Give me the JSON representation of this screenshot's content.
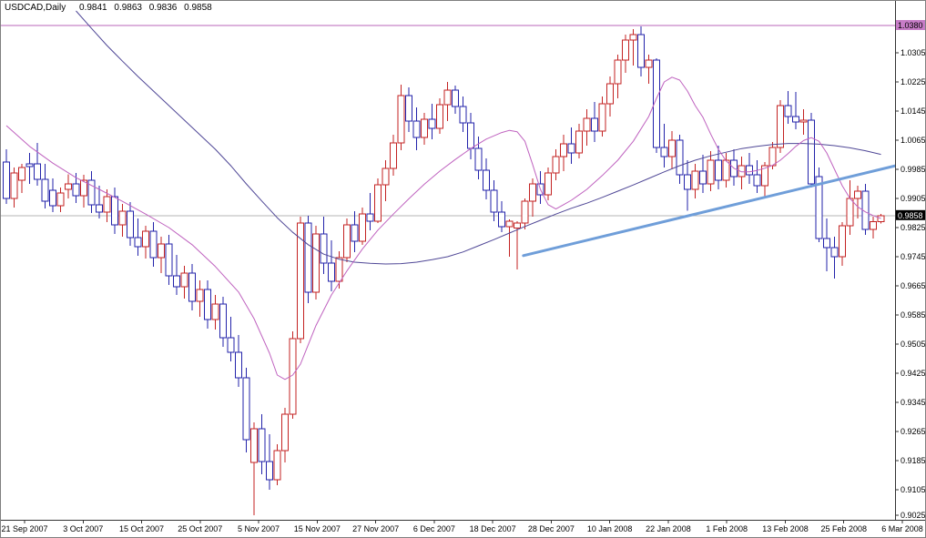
{
  "header": {
    "symbol_timeframe": "USDCAD,Daily",
    "open": "0.9841",
    "high": "0.9863",
    "low": "0.9836",
    "close": "0.9858"
  },
  "chart_data": {
    "type": "candlestick",
    "symbol": "USDCAD",
    "timeframe": "Daily",
    "title": "USDCAD,Daily",
    "x_axis": {
      "labels": [
        "21 Sep 2007",
        "3 Oct 2007",
        "15 Oct 2007",
        "25 Oct 2007",
        "5 Nov 2007",
        "15 Nov 2007",
        "27 Nov 2007",
        "6 Dec 2007",
        "18 Dec 2007",
        "28 Dec 2007",
        "10 Jan 2008",
        "22 Jan 2008",
        "1 Feb 2008",
        "13 Feb 2008",
        "25 Feb 2008",
        "6 Mar 2008"
      ]
    },
    "y_axis": {
      "tick_labels": [
        "1.0305",
        "1.0225",
        "1.0145",
        "1.0065",
        "0.9985",
        "0.9905",
        "0.9825",
        "0.9745",
        "0.9665",
        "0.9585",
        "0.9505",
        "0.9425",
        "0.9345",
        "0.9265",
        "0.9185",
        "0.9105",
        "0.9025"
      ],
      "range_top": 1.038,
      "range_bottom": 0.9025
    },
    "markers": {
      "horizontal_line_label": "1.0380",
      "current_price_label": "0.9858"
    },
    "candles": [
      [
        1.0005,
        1.004,
        0.989,
        0.9905
      ],
      [
        0.9905,
        0.999,
        0.988,
        0.9975
      ],
      [
        0.9955,
        1.0,
        0.992,
        0.999
      ],
      [
        1.0,
        1.003,
        0.9945,
        0.9992
      ],
      [
        1.0,
        1.0058,
        0.994,
        0.9958
      ],
      [
        0.9958,
        1.0,
        0.9878,
        0.9898
      ],
      [
        0.9928,
        0.996,
        0.9868,
        0.9885
      ],
      [
        0.9885,
        0.9935,
        0.9868,
        0.992
      ],
      [
        0.993,
        0.9971,
        0.9905,
        0.9945
      ],
      [
        0.9945,
        0.9975,
        0.9893,
        0.9913
      ],
      [
        0.9913,
        0.997,
        0.988,
        0.9955
      ],
      [
        0.9955,
        0.998,
        0.9865,
        0.9888
      ],
      [
        0.9888,
        0.994,
        0.985,
        0.9868
      ],
      [
        0.9868,
        0.993,
        0.984,
        0.991
      ],
      [
        0.991,
        0.9935,
        0.9808,
        0.9833
      ],
      [
        0.9833,
        0.989,
        0.98,
        0.987
      ],
      [
        0.987,
        0.9895,
        0.9775,
        0.9798
      ],
      [
        0.9798,
        0.985,
        0.9748,
        0.9773
      ],
      [
        0.9773,
        0.983,
        0.974,
        0.9815
      ],
      [
        0.9815,
        0.984,
        0.9718,
        0.9743
      ],
      [
        0.9743,
        0.98,
        0.97,
        0.978
      ],
      [
        0.978,
        0.9805,
        0.9668,
        0.9693
      ],
      [
        0.9693,
        0.975,
        0.964,
        0.9663
      ],
      [
        0.9663,
        0.972,
        0.963,
        0.97
      ],
      [
        0.97,
        0.9725,
        0.9598,
        0.9623
      ],
      [
        0.9623,
        0.968,
        0.958,
        0.9655
      ],
      [
        0.9655,
        0.968,
        0.9548,
        0.9573
      ],
      [
        0.9573,
        0.964,
        0.9545,
        0.9615
      ],
      [
        0.9615,
        0.9635,
        0.9498,
        0.9523
      ],
      [
        0.9523,
        0.958,
        0.9458,
        0.9483
      ],
      [
        0.9483,
        0.953,
        0.9388,
        0.9413
      ],
      [
        0.9413,
        0.944,
        0.9208,
        0.9243
      ],
      [
        0.918,
        0.929,
        0.9035,
        0.9272
      ],
      [
        0.9272,
        0.9312,
        0.9148,
        0.9183
      ],
      [
        0.9183,
        0.9258,
        0.9105,
        0.9133
      ],
      [
        0.9133,
        0.923,
        0.9118,
        0.9213
      ],
      [
        0.9213,
        0.933,
        0.918,
        0.9313
      ],
      [
        0.9313,
        0.954,
        0.93,
        0.952
      ],
      [
        0.952,
        0.9855,
        0.9508,
        0.9838
      ],
      [
        0.9838,
        0.9858,
        0.9618,
        0.9648
      ],
      [
        0.9648,
        0.983,
        0.9628,
        0.9808
      ],
      [
        0.9808,
        0.9855,
        0.9698,
        0.9728
      ],
      [
        0.9728,
        0.979,
        0.965,
        0.9678
      ],
      [
        0.9678,
        0.976,
        0.9658,
        0.9743
      ],
      [
        0.9743,
        0.985,
        0.973,
        0.9833
      ],
      [
        0.9833,
        0.987,
        0.9758,
        0.9788
      ],
      [
        0.9788,
        0.988,
        0.9778,
        0.9863
      ],
      [
        0.9863,
        0.992,
        0.9818,
        0.9843
      ],
      [
        0.9843,
        0.996,
        0.9838,
        0.9943
      ],
      [
        0.9943,
        1.001,
        0.9898,
        0.9988
      ],
      [
        0.9988,
        1.008,
        0.9968,
        1.0058
      ],
      [
        1.0058,
        1.0217,
        1.0038,
        1.0188
      ],
      [
        1.0188,
        1.021,
        1.0088,
        1.0118
      ],
      [
        1.0118,
        1.0155,
        1.0038,
        1.0073
      ],
      [
        1.0073,
        1.014,
        1.0053,
        1.0123
      ],
      [
        1.0123,
        1.0165,
        1.0068,
        1.0098
      ],
      [
        1.0098,
        1.018,
        1.0083,
        1.0163
      ],
      [
        1.0163,
        1.0225,
        1.0118,
        1.0203
      ],
      [
        1.0203,
        1.0215,
        1.0138,
        1.0158
      ],
      [
        1.0158,
        1.0185,
        1.0088,
        1.0113
      ],
      [
        1.0113,
        1.014,
        1.0013,
        1.0043
      ],
      [
        1.0043,
        1.0075,
        0.9958,
        0.9983
      ],
      [
        0.9983,
        1.0015,
        0.9903,
        0.9928
      ],
      [
        0.9928,
        0.9955,
        0.9843,
        0.9868
      ],
      [
        0.9868,
        0.9898,
        0.9813,
        0.9828
      ],
      [
        0.9828,
        0.9848,
        0.9745,
        0.9842
      ],
      [
        0.9824,
        0.9842,
        0.971,
        0.9838
      ],
      [
        0.9838,
        0.9905,
        0.982,
        0.9898
      ],
      [
        0.9898,
        0.996,
        0.9855,
        0.9945
      ],
      [
        0.9945,
        0.998,
        0.989,
        0.9915
      ],
      [
        0.9915,
        0.999,
        0.99,
        0.9975
      ],
      [
        0.9975,
        1.004,
        0.9955,
        1.002
      ],
      [
        1.002,
        1.008,
        0.998,
        1.0055
      ],
      [
        1.0055,
        1.01,
        1.0,
        1.003
      ],
      [
        1.003,
        1.011,
        1.0015,
        1.009
      ],
      [
        1.009,
        1.015,
        1.005,
        1.0125
      ],
      [
        1.0125,
        1.017,
        1.006,
        1.009
      ],
      [
        1.009,
        1.0185,
        1.0075,
        1.0165
      ],
      [
        1.0165,
        1.024,
        1.013,
        1.022
      ],
      [
        1.022,
        1.03,
        1.018,
        1.0285
      ],
      [
        1.0285,
        1.0355,
        1.025,
        1.034
      ],
      [
        1.034,
        1.037,
        1.027,
        1.0355
      ],
      [
        1.0355,
        1.0378,
        1.024,
        1.0265
      ],
      [
        1.0265,
        1.03,
        1.022,
        1.0285
      ],
      [
        1.0285,
        1.029,
        1.003,
        1.0045
      ],
      [
        1.0045,
        1.011,
        0.999,
        1.002
      ],
      [
        1.002,
        1.009,
        0.9985,
        1.0065
      ],
      [
        1.0065,
        1.008,
        0.9945,
        0.997
      ],
      [
        0.997,
        1.001,
        0.9871,
        0.993
      ],
      [
        0.993,
        1.0,
        0.9905,
        0.998
      ],
      [
        0.998,
        1.0025,
        0.992,
        0.9945
      ],
      [
        0.9945,
        1.0035,
        0.9925,
        1.001
      ],
      [
        1.001,
        1.005,
        0.993,
        0.9955
      ],
      [
        0.9955,
        1.003,
        0.9935,
        1.001
      ],
      [
        1.001,
        1.004,
        0.994,
        0.9965
      ],
      [
        0.9965,
        1.002,
        0.993,
        0.9995
      ],
      [
        0.9995,
        1.003,
        0.9945,
        0.997
      ],
      [
        0.997,
        1.001,
        0.992,
        0.994
      ],
      [
        0.994,
        1.0005,
        0.991,
        0.9995
      ],
      [
        0.9995,
        1.006,
        0.9985,
        1.0045
      ],
      [
        1.0045,
        1.0175,
        1.003,
        1.016
      ],
      [
        1.016,
        1.02,
        1.011,
        1.013
      ],
      [
        1.013,
        1.0197,
        1.0095,
        1.0115
      ],
      [
        1.0115,
        1.015,
        1.008,
        1.012
      ],
      [
        1.012,
        1.014,
        0.9935,
        0.9945
      ],
      [
        0.9965,
        0.999,
        0.9785,
        0.9795
      ],
      [
        0.9795,
        0.985,
        0.9705,
        0.977
      ],
      [
        0.977,
        0.98,
        0.9685,
        0.9745
      ],
      [
        0.9745,
        0.984,
        0.972,
        0.983
      ],
      [
        0.983,
        0.9955,
        0.9805,
        0.9905
      ],
      [
        0.9905,
        0.994,
        0.985,
        0.9925
      ],
      [
        0.9925,
        0.9945,
        0.9805,
        0.982
      ],
      [
        0.982,
        0.9855,
        0.9795,
        0.9841
      ],
      [
        0.9841,
        0.9863,
        0.9836,
        0.9858
      ]
    ],
    "indicators": [
      {
        "name": "ma-slow",
        "color": "#4f4796",
        "width": 1,
        "points": [
          [
            9,
            1.042
          ],
          [
            11,
            1.0372
          ],
          [
            13,
            1.0325
          ],
          [
            15,
            1.0282
          ],
          [
            17,
            1.024
          ],
          [
            19,
            1.02
          ],
          [
            21,
            1.016
          ],
          [
            23,
            1.012
          ],
          [
            25,
            1.008
          ],
          [
            27,
            1.004
          ],
          [
            29,
            0.9995
          ],
          [
            31,
            0.9945
          ],
          [
            33,
            0.9898
          ],
          [
            35,
            0.9852
          ],
          [
            37,
            0.9812
          ],
          [
            39,
            0.9778
          ],
          [
            41,
            0.9752
          ],
          [
            43,
            0.9738
          ],
          [
            45,
            0.973
          ],
          [
            47,
            0.9727
          ],
          [
            49,
            0.9725
          ],
          [
            51,
            0.9726
          ],
          [
            53,
            0.973
          ],
          [
            55,
            0.9737
          ],
          [
            57,
            0.9745
          ],
          [
            59,
            0.9758
          ],
          [
            61,
            0.9775
          ],
          [
            63,
            0.9792
          ],
          [
            65,
            0.981
          ],
          [
            67,
            0.9828
          ],
          [
            69,
            0.9845
          ],
          [
            71,
            0.9862
          ],
          [
            73,
            0.9878
          ],
          [
            75,
            0.9892
          ],
          [
            77,
            0.9908
          ],
          [
            79,
            0.9925
          ],
          [
            81,
            0.9942
          ],
          [
            83,
            0.996
          ],
          [
            85,
            0.9978
          ],
          [
            87,
            0.9995
          ],
          [
            89,
            1.001
          ],
          [
            91,
            1.0022
          ],
          [
            93,
            1.0032
          ],
          [
            95,
            1.0042
          ],
          [
            97,
            1.0048
          ],
          [
            99,
            1.0053
          ],
          [
            101,
            1.0056
          ],
          [
            103,
            1.0056
          ],
          [
            105,
            1.0054
          ],
          [
            107,
            1.005
          ],
          [
            109,
            1.0044
          ],
          [
            111,
            1.0036
          ],
          [
            113,
            1.0026
          ]
        ]
      },
      {
        "name": "ma-fast",
        "color": "#bf62bf",
        "width": 1,
        "points": [
          [
            0,
            1.0105
          ],
          [
            3,
            1.0048
          ],
          [
            6,
            1.0002
          ],
          [
            9,
            0.9962
          ],
          [
            12,
            0.993
          ],
          [
            15,
            0.9897
          ],
          [
            18,
            0.9862
          ],
          [
            21,
            0.9825
          ],
          [
            24,
            0.9778
          ],
          [
            27,
            0.9718
          ],
          [
            30,
            0.9648
          ],
          [
            32,
            0.9575
          ],
          [
            34,
            0.948
          ],
          [
            35,
            0.942
          ],
          [
            36,
            0.9408
          ],
          [
            37,
            0.942
          ],
          [
            38,
            0.945
          ],
          [
            40,
            0.9556
          ],
          [
            42,
            0.964
          ],
          [
            44,
            0.9706
          ],
          [
            46,
            0.9766
          ],
          [
            48,
            0.9818
          ],
          [
            50,
            0.9862
          ],
          [
            52,
            0.9904
          ],
          [
            54,
            0.9944
          ],
          [
            56,
            0.998
          ],
          [
            58,
            1.0012
          ],
          [
            60,
            1.0042
          ],
          [
            62,
            1.0068
          ],
          [
            64,
            1.0086
          ],
          [
            65,
            1.0092
          ],
          [
            66,
            1.0088
          ],
          [
            67,
            1.0062
          ],
          [
            68,
            0.9998
          ],
          [
            69,
            0.993
          ],
          [
            70,
            0.9888
          ],
          [
            71,
            0.9876
          ],
          [
            72,
            0.9888
          ],
          [
            73,
            0.99
          ],
          [
            75,
            0.993
          ],
          [
            77,
            0.9968
          ],
          [
            79,
            1.001
          ],
          [
            81,
            1.0062
          ],
          [
            83,
            1.013
          ],
          [
            84,
            1.018
          ],
          [
            85,
            1.0225
          ],
          [
            86,
            1.0238
          ],
          [
            87,
            1.023
          ],
          [
            88,
            1.02
          ],
          [
            89,
            1.016
          ],
          [
            90,
            1.0128
          ],
          [
            91,
            1.0082
          ],
          [
            92,
            1.004
          ],
          [
            93,
            1.0008
          ],
          [
            94,
            0.9988
          ],
          [
            95,
            0.9978
          ],
          [
            96,
            0.9978
          ],
          [
            97,
            0.9982
          ],
          [
            98,
            0.9988
          ],
          [
            99,
            0.9996
          ],
          [
            100,
            1.001
          ],
          [
            101,
            1.0028
          ],
          [
            102,
            1.0048
          ],
          [
            103,
            1.0064
          ],
          [
            104,
            1.0072
          ],
          [
            105,
            1.0062
          ],
          [
            106,
            1.003
          ],
          [
            107,
            0.9985
          ],
          [
            108,
            0.994
          ],
          [
            109,
            0.9905
          ],
          [
            110,
            0.9882
          ],
          [
            111,
            0.9868
          ],
          [
            112,
            0.9858
          ],
          [
            113,
            0.985
          ]
        ]
      }
    ],
    "annotations": {
      "horizontal_line": {
        "price": 1.038,
        "color": "#b864b8",
        "label_bg": "#c77dc7",
        "label_fg": "#000000"
      },
      "trendline": {
        "from": [
          66.8,
          0.9748
        ],
        "to": [
          114.9,
          0.9995
        ],
        "color": "#6f9ed9",
        "width": 3
      },
      "current_price": {
        "price": 0.9858,
        "line_color": "#b4b4b4",
        "label_bg": "#000000",
        "label_fg": "#ffffff"
      }
    },
    "colors": {
      "bull": "#c32222",
      "bear": "#2222aa",
      "body_fill": "#ffffff",
      "background": "#ffffff",
      "frame": "#333333",
      "text": "#000000"
    },
    "legend_position": "none",
    "grid": "off"
  }
}
